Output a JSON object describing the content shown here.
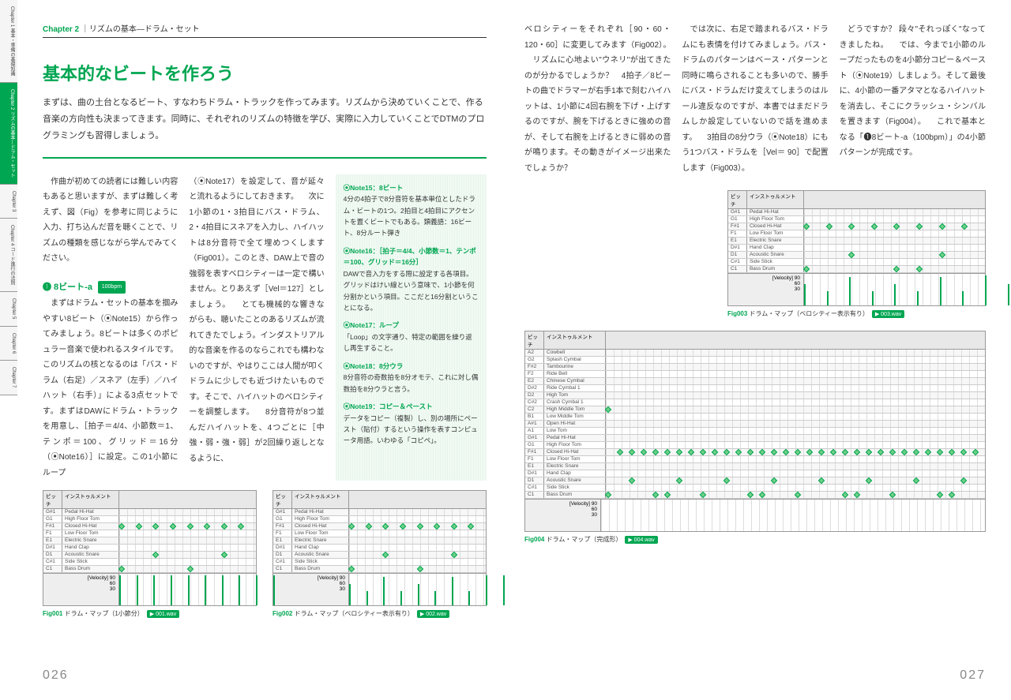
{
  "sidebar": {
    "tabs": [
      {
        "label": "Chapter 1\n基本・準備の基礎知識"
      },
      {
        "label": "Chapter 2\nリズムの基本―ドラム・セット"
      },
      {
        "label": "Chapter 3"
      },
      {
        "label": "Chapter 4\nコード進行の法則"
      },
      {
        "label": "Chapter 5"
      },
      {
        "label": "Chapter 6"
      },
      {
        "label": "Chapter 7"
      }
    ],
    "active_index": 1
  },
  "header": {
    "chapter_num": "Chapter 2",
    "chapter_title": "｜リズムの基本―ドラム・セット"
  },
  "section_title": "基本的なビートを作ろう",
  "lead": "まずは、曲の土台となるビート、すなわちドラム・トラックを作ってみます。リズムから決めていくことで、作る音楽の方向性も決まってきます。同時に、それぞれのリズムの特徴を学び、実際に入力していくことでDTMのプログラミングも習得しましょう。",
  "col_left_1": "　作曲が初めての読者には難しい内容もあると思いますが、まずは難しく考えず、図（Fig）を参考に同じように入力、打ち込んだ音を聴くことで、リズムの種類を感じながら学んでみてください。",
  "sub_heading": "❶ 8ビート-a",
  "bpm": "100bpm",
  "col_left_2": "　まずはドラム・セットの基本を掴みやすい8ビート（⦿Note15）から作ってみましょう。8ビートは多くのポピュラー音楽で使われるスタイルです。このリズムの核となるのは「バス・ドラム（右足）／スネア（左手）／ハイハット（右手）」による3点セットです。まずはDAWにドラム・トラックを用意し、［拍子＝4/4、小節数＝1、テンポ＝100、グリッド＝16分（⦿Note16）］に設定。この1小節にループ",
  "col_mid": "（⦿Note17）を設定して、音が延々と流れるようにしておきます。\n　次に1小節の1・3拍目にバス・ドラム、2・4拍目にスネアを入力し、ハイハットは8分音符で全て埋めつくします（Fig001）。このとき、DAW上で音の強弱を表すベロシティーは一定で構いません。とりあえず［Vel＝127］としましょう。\n　とても機械的な響きながらも、聴いたことのあるリズムが流れてきたでしょう。インダストリアル的な音楽を作るのならこれでも構わないのですが、やはりここは人間が叩くドラムに少しでも近づけたいものです。そこで、ハイハットのベロシティーを調整します。\n　8分音符が8つ並んだハイハットを、4つごとに［中強・弱・強・弱］が2回繰り返しとなるように、",
  "notes": [
    {
      "title": "⦿Note15：8ビート",
      "body": "4分の4拍子で8分音符を基本単位としたドラム・ビートの1つ。2拍目と4拍目にアクセントを置くビートでもある。類義語：16ビート、8分ルート弾き"
    },
    {
      "title": "⦿Note16：［拍子＝4/4、小節数＝1、テンポ＝100、グリッド＝16分］",
      "body": "DAWで音入力をする際に設定する各項目。グリッドはけい線という意味で、1小節を何分割かという項目。ここだと16分割ということになる。"
    },
    {
      "title": "⦿Note17：ループ",
      "body": "「Loop」の文字通り、特定の範囲を繰り返し再生すること。"
    },
    {
      "title": "⦿Note18：8分ウラ",
      "body": "8分音符の奇数拍を8分オモテ、これに対し偶数拍を8分ウラと言う。"
    },
    {
      "title": "⦿Note19：コピー＆ペースト",
      "body": "データをコピー（複製）し、別の場所にペースト（貼付）するという操作を表すコンピュータ用語。いわゆる「コピペ」。"
    }
  ],
  "right_col1": "ベロシティーをそれぞれ［90・60・120・60］に変更してみます（Fig002）。\n　リズムに心地よい\"ウネリ\"が出てきたのが分かるでしょうか？　4拍子／8ビートの曲でドラマーが右手1本で刻むハイハットは、1小節に4回右腕を下げ・上げするのですが、腕を下げるときに強めの音が、そして右腕を上げるときに弱めの音が鳴ります。その動きがイメージ出来たでしょうか？",
  "right_col2": "　では次に、右足で踏まれるバス・ドラムにも表情を付けてみましょう。バス・ドラムのパターンはベース・パターンと同時に鳴らされることも多いので、勝手にバス・ドラムだけ変えてしまうのはルール違反なのですが、本書ではまだドラムしか設定していないので話を進めます。\n　3拍目の8分ウラ（⦿Note18）にもう1つバス・ドラムを［Vel＝ 90］で配置します（Fig003）。",
  "right_col3": "　どうですか？ 段々\"それっぽく\"なってきましたね。\n　では、今まで1小節のループだったものを4小節分コピー＆ペースト（⦿Note19）しましょう。そして最後に、4小節の一番アタマとなるハイハットを消去し、そこにクラッシュ・シンバルを置きます（Fig004）。\n　これで基本となる「❶8ビート-a（100bpm）」の4小節パターンが完成です。",
  "instruments_short": [
    {
      "p": "G#1",
      "n": "Pedal Hi-Hat"
    },
    {
      "p": "G1",
      "n": "High Floor Tom"
    },
    {
      "p": "F#1",
      "n": "Closed Hi-Hat"
    },
    {
      "p": "F1",
      "n": "Low Floor Tom"
    },
    {
      "p": "E1",
      "n": "Electric Snare"
    },
    {
      "p": "D#1",
      "n": "Hand Clap"
    },
    {
      "p": "D1",
      "n": "Acoustic Snare"
    },
    {
      "p": "C#1",
      "n": "Side Stick"
    },
    {
      "p": "C1",
      "n": "Bass Drum"
    }
  ],
  "instruments_ext": [
    {
      "p": "G#1",
      "n": "Pedal Hi-Hat"
    },
    {
      "p": "G1",
      "n": "High Floor Tom"
    },
    {
      "p": "F#1",
      "n": "Closed Hi-Hat"
    },
    {
      "p": "F1",
      "n": "Low Floor Tom"
    },
    {
      "p": "E1",
      "n": "Electric Snare"
    },
    {
      "p": "D#1",
      "n": "Hand Clap"
    },
    {
      "p": "D1",
      "n": "Acoustic Snare"
    },
    {
      "p": "C#1",
      "n": "Side Stick"
    },
    {
      "p": "C1",
      "n": "Bass Drum"
    }
  ],
  "instruments_full": [
    {
      "p": "A2",
      "n": "Cowbell"
    },
    {
      "p": "G2",
      "n": "Splash Cymbal"
    },
    {
      "p": "F#2",
      "n": "Tambourine"
    },
    {
      "p": "F2",
      "n": "Ride Bell"
    },
    {
      "p": "E2",
      "n": "Chinese Cymbal"
    },
    {
      "p": "D#2",
      "n": "Ride Cymbal 1"
    },
    {
      "p": "D2",
      "n": "High Tom"
    },
    {
      "p": "C#2",
      "n": "Crash Cymbal 1"
    },
    {
      "p": "C2",
      "n": "High Middle Tom"
    },
    {
      "p": "B1",
      "n": "Low Middle Tom"
    },
    {
      "p": "A#1",
      "n": "Open Hi-Hat"
    },
    {
      "p": "A1",
      "n": "Low Tom"
    },
    {
      "p": "G#1",
      "n": "Pedal Hi-Hat"
    },
    {
      "p": "G1",
      "n": "High Floor Tom"
    },
    {
      "p": "F#1",
      "n": "Closed Hi-Hat"
    },
    {
      "p": "F1",
      "n": "Low Floor Tom"
    },
    {
      "p": "E1",
      "n": "Electric Snare"
    },
    {
      "p": "D#1",
      "n": "Hand Clap"
    },
    {
      "p": "D1",
      "n": "Acoustic Snare"
    },
    {
      "p": "C#1",
      "n": "Side Stick"
    },
    {
      "p": "C1",
      "n": "Bass Drum"
    }
  ],
  "fig001": {
    "label": "Fig001",
    "caption": "ドラム・マップ（1小節分）",
    "wav": "001.wav",
    "hihat_row": 2,
    "snare_row": 6,
    "bd_row": 8,
    "hihat_steps": [
      0,
      1,
      2,
      3,
      4,
      5,
      6,
      7
    ],
    "snare_steps": [
      2,
      6
    ],
    "bd_steps": [
      0,
      4
    ],
    "velocities": [
      127,
      127,
      127,
      127,
      127,
      127,
      127,
      127,
      127,
      127
    ],
    "velo_labels": [
      "90",
      "60",
      "30"
    ]
  },
  "fig002": {
    "label": "Fig002",
    "caption": "ドラム・マップ（ベロシティー表示有り）",
    "wav": "002.wav",
    "hihat_row": 2,
    "snare_row": 6,
    "bd_row": 8,
    "hihat_steps": [
      0,
      1,
      2,
      3,
      4,
      5,
      6,
      7
    ],
    "snare_steps": [
      2,
      6
    ],
    "bd_steps": [
      0,
      4
    ],
    "velocities": [
      90,
      60,
      120,
      60,
      90,
      60,
      120,
      60,
      127,
      127
    ],
    "velo_labels": [
      "90",
      "60",
      "30"
    ]
  },
  "fig003": {
    "label": "Fig003",
    "caption": "ドラム・マップ（ベロシティー表示有り）",
    "wav": "003.wav",
    "hihat_row": 2,
    "snare_row": 6,
    "bd_row": 8,
    "hihat_steps": [
      0,
      1,
      2,
      3,
      4,
      5,
      6,
      7
    ],
    "snare_steps": [
      2,
      6
    ],
    "bd_steps": [
      0,
      4,
      5
    ],
    "velocities": [
      90,
      60,
      120,
      60,
      90,
      60,
      120,
      60,
      127,
      90,
      127
    ],
    "velo_labels": [
      "90",
      "60",
      "30"
    ]
  },
  "fig004": {
    "label": "Fig004",
    "caption": "ドラム・マップ（完成形）",
    "wav": "004.wav",
    "measures": 4,
    "crash_row": 8,
    "hihat_row": 14,
    "snare_row": 18,
    "bd_row": 20,
    "crash_steps": [
      0
    ],
    "hihat_steps": [
      1,
      2,
      3,
      4,
      5,
      6,
      7,
      8,
      9,
      10,
      11,
      12,
      13,
      14,
      15,
      16,
      17,
      18,
      19,
      20,
      21,
      22,
      23,
      24,
      25,
      26,
      27,
      28,
      29,
      30,
      31
    ],
    "snare_steps": [
      2,
      6,
      10,
      14,
      18,
      22,
      26,
      30
    ],
    "bd_steps": [
      0,
      4,
      5,
      8,
      12,
      13,
      16,
      20,
      21,
      24,
      28,
      29
    ],
    "velo_labels": [
      "90",
      "60",
      "30"
    ]
  },
  "dm_header": {
    "pitch": "ピッチ",
    "instr": "インストゥルメント"
  },
  "velocity_label": "[Velocity]",
  "page_left": "026",
  "page_right": "027",
  "colors": {
    "accent": "#00a651"
  }
}
